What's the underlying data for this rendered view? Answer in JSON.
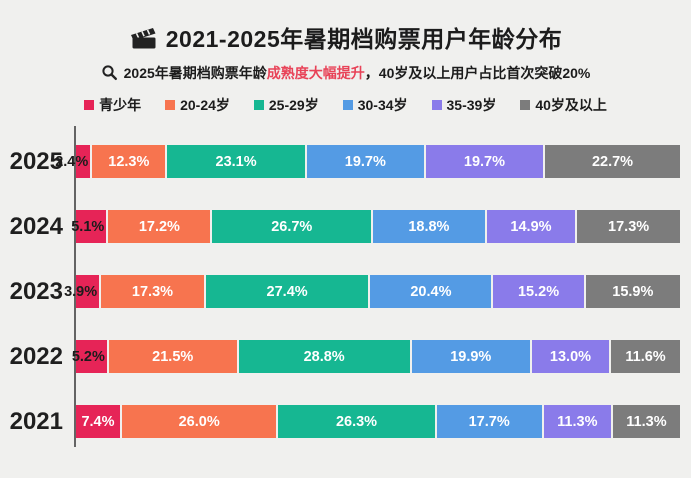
{
  "header": {
    "title": "2021-2025年暑期档购票用户年龄分布",
    "title_icon": "clapperboard-icon",
    "subtitle_icon": "magnifier-icon",
    "subtitle_prefix": "2025年暑期档购票年龄",
    "subtitle_highlight": "成熟度大幅提升",
    "subtitle_suffix": "，40岁及以上用户占比首次突破20%"
  },
  "colors": {
    "background": "#f0f0ee",
    "subtitle_highlight": "#e84358",
    "axis": "#646464",
    "text": "#1c1c1c"
  },
  "chart_data": {
    "type": "bar",
    "orientation": "horizontal",
    "stacked": true,
    "unit": "%",
    "title": "2021-2025年暑期档购票用户年龄分布",
    "categories": [
      "2025",
      "2024",
      "2023",
      "2022",
      "2021"
    ],
    "series": [
      {
        "key": "teens",
        "name": "青少年",
        "color": "#e62457",
        "values": [
          2.4,
          5.1,
          3.9,
          5.2,
          7.4
        ],
        "labels": [
          "2.4%",
          "5.1%",
          "3.9%",
          "5.2%",
          "7.4%"
        ]
      },
      {
        "key": "20-24",
        "name": "20-24岁",
        "color": "#f7744f",
        "values": [
          12.3,
          17.2,
          17.3,
          21.5,
          26.0
        ],
        "labels": [
          "12.3%",
          "17.2%",
          "17.3%",
          "21.5%",
          "26.0%"
        ]
      },
      {
        "key": "25-29",
        "name": "25-29岁",
        "color": "#16b792",
        "values": [
          23.1,
          26.7,
          27.4,
          28.8,
          26.3
        ],
        "labels": [
          "23.1%",
          "26.7%",
          "27.4%",
          "28.8%",
          "26.3%"
        ]
      },
      {
        "key": "30-34",
        "name": "30-34岁",
        "color": "#549be4",
        "values": [
          19.7,
          18.8,
          20.4,
          19.9,
          17.7
        ],
        "labels": [
          "19.7%",
          "18.8%",
          "20.4%",
          "19.9%",
          "17.7%"
        ]
      },
      {
        "key": "35-39",
        "name": "35-39岁",
        "color": "#8a7bea",
        "values": [
          19.7,
          14.9,
          15.2,
          13.0,
          11.3
        ],
        "labels": [
          "19.7%",
          "14.9%",
          "15.2%",
          "13.0%",
          "11.3%"
        ]
      },
      {
        "key": "40-plus",
        "name": "40岁及以上",
        "color": "#7c7c7c",
        "values": [
          22.7,
          17.3,
          15.9,
          11.6,
          11.3
        ],
        "labels": [
          "22.7%",
          "17.3%",
          "15.9%",
          "11.6%",
          "11.3%"
        ]
      }
    ],
    "xlim": [
      0,
      100
    ],
    "legend_position": "top",
    "grid": false
  }
}
